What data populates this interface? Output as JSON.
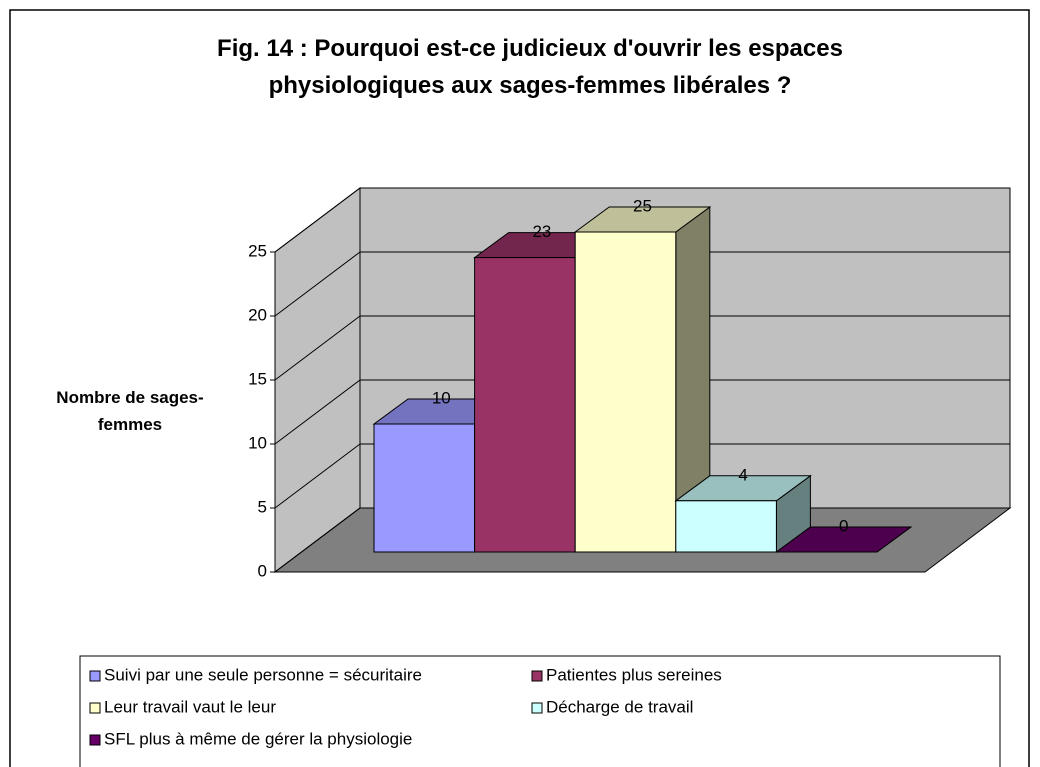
{
  "chart_data": {
    "type": "bar3d",
    "title": "Fig. 14 : Pourquoi est-ce judicieux d'ouvrir les espaces physiologiques aux sages-femmes libérales ?",
    "y_label": "Nombre de sages-femmes",
    "categories": [
      "Suivi par une seule personne = sécuritaire",
      "Patientes plus sereines",
      "Leur travail vaut le leur",
      "Décharge de travail",
      "SFL plus à même de gérer la physiologie"
    ],
    "values": [
      10,
      23,
      25,
      4,
      0
    ],
    "colors": [
      "#9999ff",
      "#993366",
      "#ffffcc",
      "#ccffff",
      "#660066"
    ],
    "ylim": [
      0,
      25
    ],
    "yticks": [
      0,
      5,
      10,
      15,
      20,
      25
    ],
    "grid": true,
    "legend": "bottom"
  }
}
